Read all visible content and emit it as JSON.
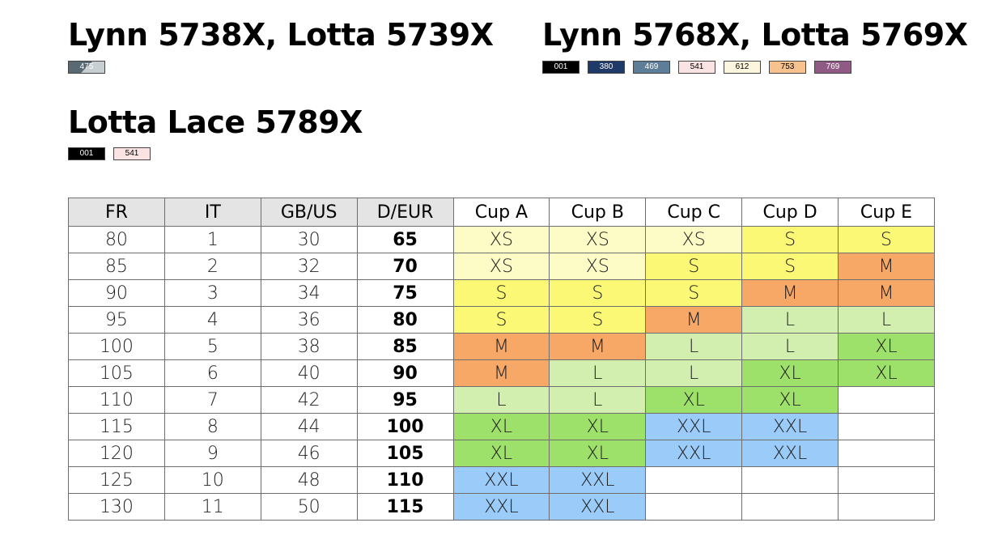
{
  "groups": [
    {
      "title": "Lynn 5738X, Lotta 5739X",
      "swatches": [
        {
          "code": "475",
          "background": "linear-gradient(135deg,#5a6a74 0%,#5a6a74 50%,#c7cfd3 50%,#c7cfd3 100%)",
          "text": "#ffffff"
        }
      ]
    },
    {
      "title": "Lynn 5768X, Lotta 5769X",
      "swatches": [
        {
          "code": "001",
          "background": "#000000",
          "text": "#ffffff"
        },
        {
          "code": "380",
          "background": "#1f3a68",
          "text": "#ffffff"
        },
        {
          "code": "469",
          "background": "#5e7d98",
          "text": "#ffffff"
        },
        {
          "code": "541",
          "background": "#fbe3e3",
          "text": "#000000"
        },
        {
          "code": "612",
          "background": "#fdf6de",
          "text": "#000000"
        },
        {
          "code": "753",
          "background": "#f8c28e",
          "text": "#000000"
        },
        {
          "code": "769",
          "background": "#8f5a83",
          "text": "#ffffff"
        }
      ]
    },
    {
      "title": "Lotta Lace 5789X",
      "swatches": [
        {
          "code": "001",
          "background": "#000000",
          "text": "#ffffff"
        },
        {
          "code": "541",
          "background": "#fbe3e3",
          "text": "#000000"
        }
      ]
    }
  ],
  "table": {
    "headers": [
      "FR",
      "IT",
      "GB/US",
      "D/EUR",
      "Cup A",
      "Cup B",
      "Cup C",
      "Cup D",
      "Cup E"
    ],
    "rows": [
      [
        "80",
        "1",
        "30",
        "65",
        "XS",
        "XS",
        "XS",
        "S",
        "S"
      ],
      [
        "85",
        "2",
        "32",
        "70",
        "XS",
        "XS",
        "S",
        "S",
        "M"
      ],
      [
        "90",
        "3",
        "34",
        "75",
        "S",
        "S",
        "S",
        "M",
        "M"
      ],
      [
        "95",
        "4",
        "36",
        "80",
        "S",
        "S",
        "M",
        "L",
        "L"
      ],
      [
        "100",
        "5",
        "38",
        "85",
        "M",
        "M",
        "L",
        "L",
        "XL"
      ],
      [
        "105",
        "6",
        "40",
        "90",
        "M",
        "L",
        "L",
        "XL",
        "XL"
      ],
      [
        "110",
        "7",
        "42",
        "95",
        "L",
        "L",
        "XL",
        "XL",
        ""
      ],
      [
        "115",
        "8",
        "44",
        "100",
        "XL",
        "XL",
        "XXL",
        "XXL",
        ""
      ],
      [
        "120",
        "9",
        "46",
        "105",
        "XL",
        "XL",
        "XXL",
        "XXL",
        ""
      ],
      [
        "125",
        "10",
        "48",
        "110",
        "XXL",
        "XXL",
        "",
        "",
        ""
      ],
      [
        "130",
        "11",
        "50",
        "115",
        "XXL",
        "XXL",
        "",
        "",
        ""
      ]
    ]
  },
  "size_colors": {
    "XS": "#fdfcc6",
    "S": "#fbf876",
    "M": "#f8a866",
    "L": "#d3efb0",
    "XL": "#9de06a",
    "XXL": "#9bcbf8"
  }
}
